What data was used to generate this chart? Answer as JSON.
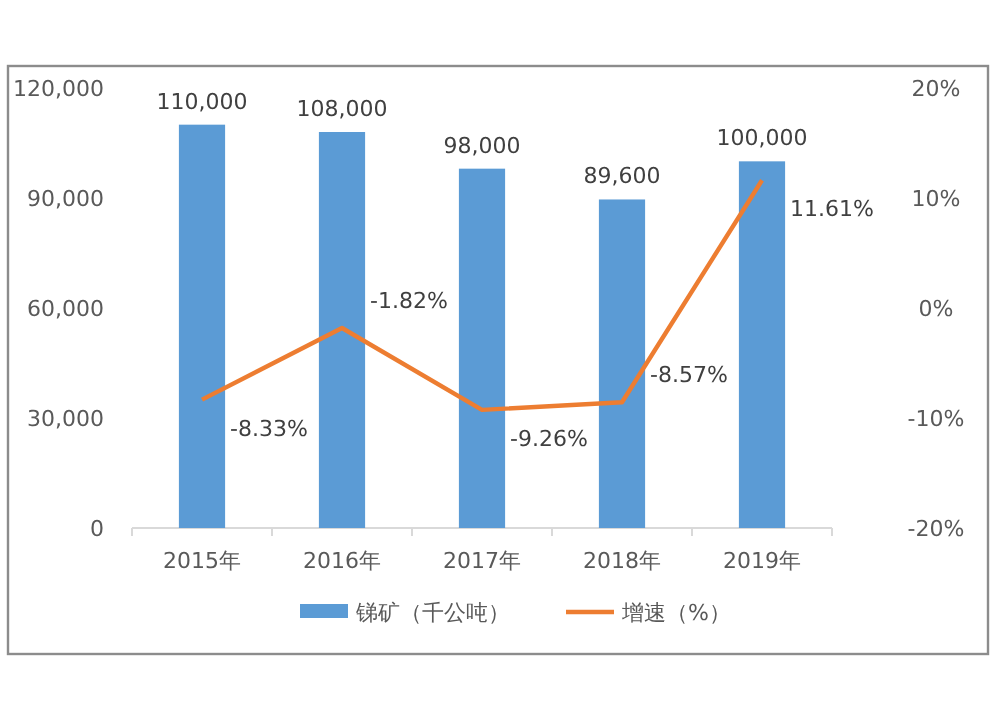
{
  "chart_data": {
    "type": "bar",
    "categories": [
      "2015年",
      "2016年",
      "2017年",
      "2018年",
      "2019年"
    ],
    "series": [
      {
        "name": "锑矿（千公吨）",
        "color": "#5b9bd5",
        "values": [
          110000,
          108000,
          98000,
          89600,
          100000
        ],
        "value_labels": [
          "110,000",
          "108,000",
          "98,000",
          "89,600",
          "100,000"
        ]
      },
      {
        "name": "增速（%）",
        "type": "line",
        "axis": "y2",
        "color": "#ed7d31",
        "values": [
          -8.33,
          -1.82,
          -9.26,
          -8.57,
          11.61
        ],
        "value_labels": [
          "-8.33%",
          "-1.82%",
          "-9.26%",
          "-8.57%",
          "11.61%"
        ]
      }
    ],
    "ylim": [
      0,
      120000
    ],
    "yticks": [
      {
        "value": 0,
        "label": "0"
      },
      {
        "value": 30000,
        "label": "30,000"
      },
      {
        "value": 60000,
        "label": "60,000"
      },
      {
        "value": 90000,
        "label": "90,000"
      },
      {
        "value": 120000,
        "label": "120,000"
      }
    ],
    "y2lim": [
      -20,
      20
    ],
    "y2ticks": [
      {
        "value": -20,
        "label": "-20%"
      },
      {
        "value": -10,
        "label": "-10%"
      },
      {
        "value": 0,
        "label": "0%"
      },
      {
        "value": 10,
        "label": "10%"
      },
      {
        "value": 20,
        "label": "20%"
      }
    ],
    "legend": "bottom",
    "marker": "none",
    "line_style": "solid"
  }
}
